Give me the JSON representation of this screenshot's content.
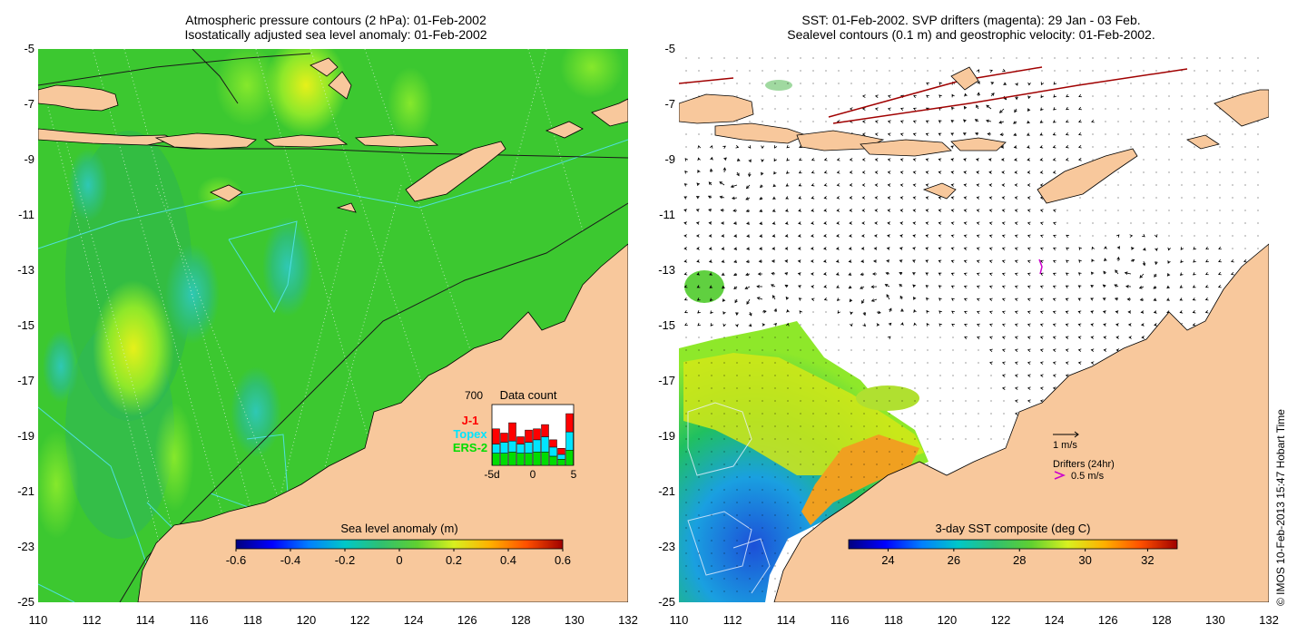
{
  "left_panel": {
    "title_line1": "Atmospheric pressure contours (2 hPa): 01-Feb-2002",
    "title_line2": "Isostatically adjusted sea level anomaly: 01-Feb-2002",
    "y_ticks": [
      "-5",
      "-7",
      "-9",
      "-11",
      "-13",
      "-15",
      "-17",
      "-19",
      "-21",
      "-23",
      "-25"
    ],
    "x_ticks": [
      "110",
      "112",
      "114",
      "116",
      "118",
      "120",
      "122",
      "124",
      "126",
      "128",
      "130",
      "132"
    ],
    "colorbar": {
      "label": "Sea level anomaly (m)",
      "ticks": [
        "-0.6",
        "-0.4",
        "-0.2",
        "0",
        "0.2",
        "0.4",
        "0.6"
      ]
    },
    "data_count": {
      "title": "Data count",
      "max_label": "700",
      "legend": [
        {
          "name": "J-1",
          "color": "#ff0000"
        },
        {
          "name": "Topex",
          "color": "#00e5ff"
        },
        {
          "name": "ERS-2",
          "color": "#00dd00"
        }
      ],
      "x_ticks": [
        "-5d",
        "0",
        "5"
      ],
      "bars": [
        {
          "ers2": 0.2,
          "topex": 0.15,
          "j1": 0.25
        },
        {
          "ers2": 0.2,
          "topex": 0.18,
          "j1": 0.15
        },
        {
          "ers2": 0.22,
          "topex": 0.18,
          "j1": 0.3
        },
        {
          "ers2": 0.2,
          "topex": 0.15,
          "j1": 0.12
        },
        {
          "ers2": 0.2,
          "topex": 0.18,
          "j1": 0.2
        },
        {
          "ers2": 0.22,
          "topex": 0.2,
          "j1": 0.18
        },
        {
          "ers2": 0.22,
          "topex": 0.25,
          "j1": 0.2
        },
        {
          "ers2": 0.15,
          "topex": 0.15,
          "j1": 0.12
        },
        {
          "ers2": 0.1,
          "topex": 0.08,
          "j1": 0.1
        },
        {
          "ers2": 0.25,
          "topex": 0.3,
          "j1": 0.3
        }
      ]
    }
  },
  "right_panel": {
    "title_line1": "SST: 01-Feb-2002. SVP drifters (magenta): 29 Jan - 03 Feb.",
    "title_line2": "Sealevel contours (0.1 m) and geostrophic velocity: 01-Feb-2002.",
    "y_ticks": [
      "-5",
      "-7",
      "-9",
      "-11",
      "-13",
      "-15",
      "-17",
      "-19",
      "-21",
      "-23",
      "-25"
    ],
    "x_ticks": [
      "110",
      "112",
      "114",
      "116",
      "118",
      "120",
      "122",
      "124",
      "126",
      "128",
      "130",
      "132"
    ],
    "colorbar": {
      "label": "3-day SST composite (deg C)",
      "ticks": [
        "24",
        "26",
        "28",
        "30",
        "32"
      ]
    },
    "velocity_legend": "1 m/s",
    "drifter_legend_title": "Drifters (24hr)",
    "drifter_legend_speed": "0.5 m/s"
  },
  "credit": "© IMOS 10-Feb-2013 15:47 Hobart Time",
  "colors": {
    "land": "#f8c89c",
    "ocean_green": "#33c42a",
    "drifter": "#cc00cc",
    "satellite_track": "#40e0e0"
  }
}
